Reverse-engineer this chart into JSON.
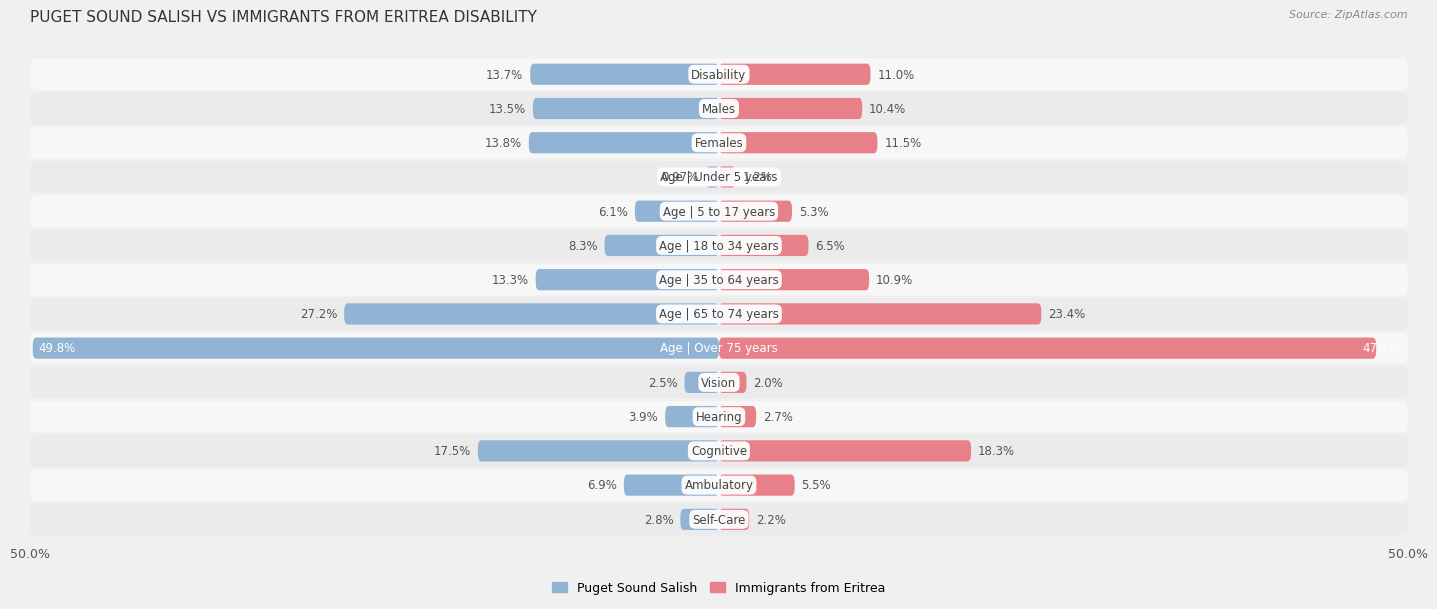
{
  "title": "PUGET SOUND SALISH VS IMMIGRANTS FROM ERITREA DISABILITY",
  "source": "Source: ZipAtlas.com",
  "categories": [
    "Disability",
    "Males",
    "Females",
    "Age | Under 5 years",
    "Age | 5 to 17 years",
    "Age | 18 to 34 years",
    "Age | 35 to 64 years",
    "Age | 65 to 74 years",
    "Age | Over 75 years",
    "Vision",
    "Hearing",
    "Cognitive",
    "Ambulatory",
    "Self-Care"
  ],
  "left_values": [
    13.7,
    13.5,
    13.8,
    0.97,
    6.1,
    8.3,
    13.3,
    27.2,
    49.8,
    2.5,
    3.9,
    17.5,
    6.9,
    2.8
  ],
  "right_values": [
    11.0,
    10.4,
    11.5,
    1.2,
    5.3,
    6.5,
    10.9,
    23.4,
    47.7,
    2.0,
    2.7,
    18.3,
    5.5,
    2.2
  ],
  "left_labels": [
    "13.7%",
    "13.5%",
    "13.8%",
    "0.97%",
    "6.1%",
    "8.3%",
    "13.3%",
    "27.2%",
    "49.8%",
    "2.5%",
    "3.9%",
    "17.5%",
    "6.9%",
    "2.8%"
  ],
  "right_labels": [
    "11.0%",
    "10.4%",
    "11.5%",
    "1.2%",
    "5.3%",
    "6.5%",
    "10.9%",
    "23.4%",
    "47.7%",
    "2.0%",
    "2.7%",
    "18.3%",
    "5.5%",
    "2.2%"
  ],
  "left_color": "#92b4d4",
  "right_color": "#e8808a",
  "background_color": "#f0f0f0",
  "row_color_even": "#f7f7f7",
  "row_color_odd": "#ebebeb",
  "max_value": 50.0,
  "legend_left": "Puget Sound Salish",
  "legend_right": "Immigrants from Eritrea",
  "axis_label_left": "50.0%",
  "axis_label_right": "50.0%",
  "title_fontsize": 11,
  "label_fontsize": 8.5,
  "category_fontsize": 8.5
}
